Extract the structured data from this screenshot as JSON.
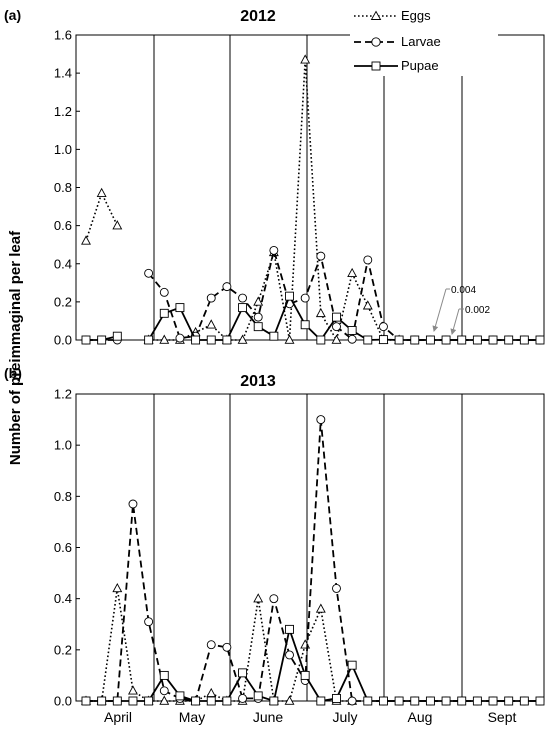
{
  "y_axis_label": "Number of preimmaginal per leaf",
  "legend": [
    {
      "key": "eggs",
      "label": "Eggs"
    },
    {
      "key": "larvae",
      "label": "Larvae"
    },
    {
      "key": "pupae",
      "label": "Pupae"
    }
  ],
  "months": [
    "April",
    "May",
    "June",
    "July",
    "Aug",
    "Sept"
  ],
  "annotations": [
    "0.004",
    "0.002"
  ],
  "chart_data": [
    {
      "type": "line",
      "panel": "(a)",
      "title": "2012",
      "ylim": [
        0,
        1.6
      ],
      "yticks": [
        "0.0",
        "0.2",
        "0.4",
        "0.6",
        "0.8",
        "1.0",
        "1.2",
        "1.4",
        "1.6"
      ],
      "x": [
        1,
        2,
        3,
        4,
        5,
        6,
        7,
        8,
        9,
        10,
        11,
        12,
        13,
        14,
        15,
        16,
        17,
        18,
        19,
        20,
        21,
        22,
        23,
        24,
        25,
        26,
        27,
        28,
        29,
        30
      ],
      "series": [
        {
          "name": "Eggs",
          "values": [
            0.52,
            0.77,
            0.6,
            null,
            0,
            0,
            0,
            0.04,
            0.08,
            0,
            0,
            0.2,
            0.46,
            0,
            1.47,
            0.14,
            0,
            0.35,
            0.18,
            0,
            0,
            null,
            null,
            null,
            null,
            null,
            null,
            null,
            null,
            null
          ]
        },
        {
          "name": "Larvae",
          "values": [
            0,
            0,
            0,
            null,
            0.35,
            0.25,
            0.01,
            0.02,
            0.22,
            0.28,
            0.22,
            0.12,
            0.47,
            0.19,
            0.22,
            0.44,
            0.07,
            0.004,
            0.42,
            0.07,
            0,
            0,
            0,
            0,
            0,
            0,
            0,
            0,
            0,
            0
          ]
        },
        {
          "name": "Pupae",
          "values": [
            0,
            0,
            0.02,
            null,
            0,
            0.14,
            0.17,
            0,
            0,
            0,
            0.17,
            0.07,
            0.02,
            0.23,
            0.08,
            0,
            0.12,
            0.05,
            0,
            0.002,
            0,
            0,
            0,
            0,
            0,
            0,
            0,
            0,
            0,
            0
          ]
        }
      ]
    },
    {
      "type": "line",
      "panel": "(b)",
      "title": "2013",
      "ylim": [
        0,
        1.2
      ],
      "yticks": [
        "0.0",
        "0.2",
        "0.4",
        "0.6",
        "0.8",
        "1.0",
        "1.2"
      ],
      "x": [
        1,
        2,
        3,
        4,
        5,
        6,
        7,
        8,
        9,
        10,
        11,
        12,
        13,
        14,
        15,
        16,
        17,
        18,
        19,
        20,
        21,
        22,
        23,
        24,
        25,
        26,
        27,
        28,
        29,
        30
      ],
      "series": [
        {
          "name": "Eggs",
          "values": [
            0,
            0,
            0.44,
            0.04,
            0,
            0,
            0,
            0,
            0.03,
            0,
            0,
            0.4,
            0,
            0,
            0.22,
            0.36,
            0,
            0,
            null,
            null,
            null,
            null,
            null,
            null,
            null,
            null,
            null,
            null,
            null,
            null
          ]
        },
        {
          "name": "Larvae",
          "values": [
            0,
            0,
            0,
            0.77,
            0.31,
            0.04,
            0.01,
            0,
            0.22,
            0.21,
            0.01,
            0.01,
            0.4,
            0.18,
            0.08,
            1.1,
            0.44,
            0,
            0,
            0,
            0,
            0,
            0,
            0,
            0,
            0,
            0,
            0,
            0,
            0
          ]
        },
        {
          "name": "Pupae",
          "values": [
            0,
            0,
            0,
            0,
            0,
            0.1,
            0.02,
            0,
            0,
            0,
            0.11,
            0.02,
            0,
            0.28,
            0.1,
            0,
            0.01,
            0.14,
            0,
            0,
            0,
            0,
            0,
            0,
            0,
            0,
            0,
            0,
            0,
            0
          ]
        }
      ]
    }
  ]
}
